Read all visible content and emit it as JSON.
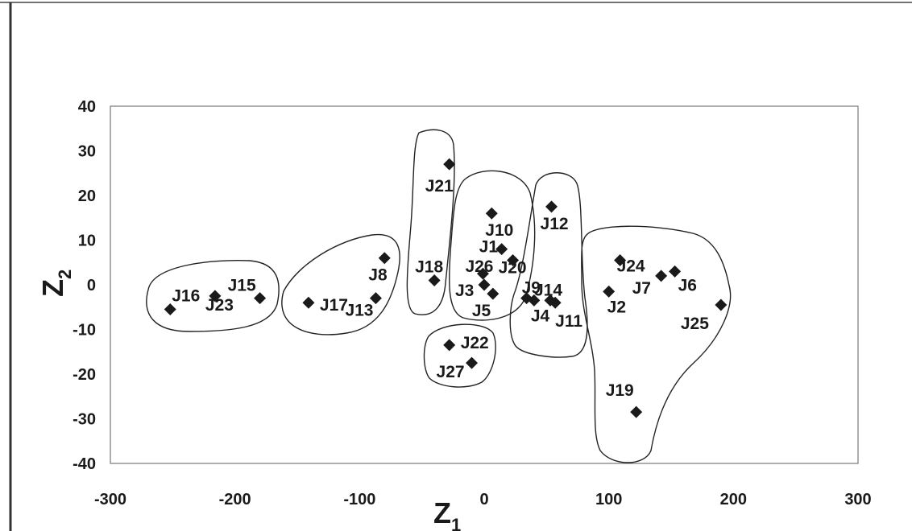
{
  "chart_data": {
    "type": "scatter",
    "title": "",
    "xlabel": "Z",
    "xlabel_subscript": "1",
    "ylabel": "Z",
    "ylabel_subscript": "2",
    "xlim": [
      -300,
      300
    ],
    "ylim": [
      -40,
      40
    ],
    "xticks": [
      "-300",
      "-200",
      "-100",
      "0",
      "100",
      "200",
      "300"
    ],
    "yticks": [
      "40",
      "30",
      "20",
      "10",
      "0",
      "-10",
      "-20",
      "-30",
      "-40"
    ],
    "grid": false,
    "legend": "none",
    "marker": "diamond",
    "marker_color": "#1a1a1a",
    "points": [
      {
        "label": "J16",
        "x": -252,
        "y": -5.5
      },
      {
        "label": "J23",
        "x": -216,
        "y": -2.5
      },
      {
        "label": "J15",
        "x": -180,
        "y": -3
      },
      {
        "label": "J17",
        "x": -141,
        "y": -4
      },
      {
        "label": "J13",
        "x": -87,
        "y": -3
      },
      {
        "label": "J8",
        "x": -80,
        "y": 6
      },
      {
        "label": "J18",
        "x": -40,
        "y": 1
      },
      {
        "label": "J21",
        "x": -28,
        "y": 27
      },
      {
        "label": "J22",
        "x": -28,
        "y": -13.5
      },
      {
        "label": "J27",
        "x": -10,
        "y": -17.5
      },
      {
        "label": "J3",
        "x": 0,
        "y": 0
      },
      {
        "label": "J26",
        "x": -1,
        "y": 2.5
      },
      {
        "label": "J5",
        "x": 7,
        "y": -2
      },
      {
        "label": "J10",
        "x": 6,
        "y": 16
      },
      {
        "label": "J1",
        "x": 14,
        "y": 8
      },
      {
        "label": "J20",
        "x": 23,
        "y": 5.5
      },
      {
        "label": "J9",
        "x": 34,
        "y": -3
      },
      {
        "label": "J4",
        "x": 40,
        "y": -3.5
      },
      {
        "label": "J14",
        "x": 53,
        "y": -3.5
      },
      {
        "label": "J11",
        "x": 57,
        "y": -4
      },
      {
        "label": "J12",
        "x": 54,
        "y": 17.5
      },
      {
        "label": "J2",
        "x": 100,
        "y": -1.5
      },
      {
        "label": "J24",
        "x": 109,
        "y": 5.5
      },
      {
        "label": "J7",
        "x": 142,
        "y": 2
      },
      {
        "label": "J6",
        "x": 153,
        "y": 3
      },
      {
        "label": "J25",
        "x": 190,
        "y": -4.5
      },
      {
        "label": "J19",
        "x": 122,
        "y": -28.5
      }
    ]
  }
}
